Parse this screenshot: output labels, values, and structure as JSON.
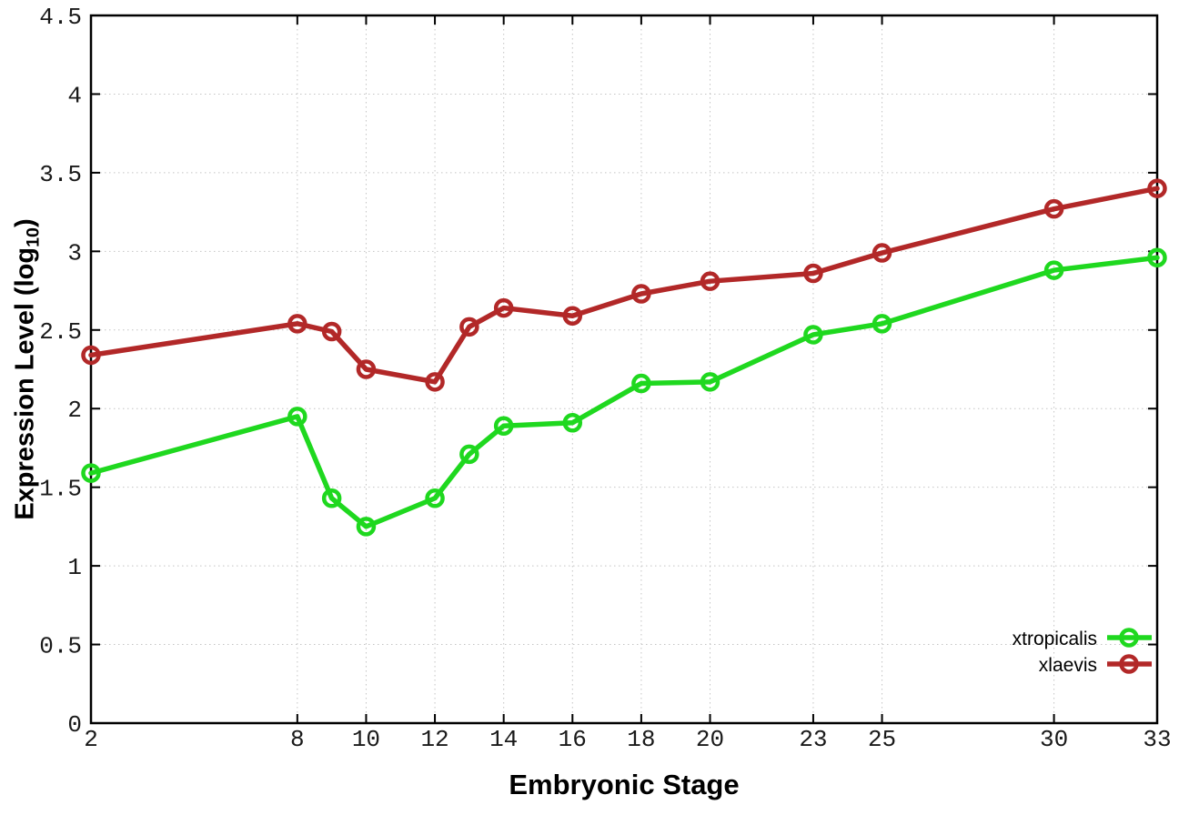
{
  "page": {
    "background": "#ffffff"
  },
  "chart_data": {
    "type": "line",
    "title": "",
    "xlabel": "Embryonic Stage",
    "ylabel": {
      "prefix": "Expression Level (log",
      "sub": "10",
      "suffix": ")"
    },
    "xlim": [
      2,
      33
    ],
    "ylim": [
      0,
      4.5
    ],
    "x": [
      2,
      8,
      9,
      10,
      12,
      13,
      14,
      16,
      18,
      20,
      23,
      25,
      30,
      33
    ],
    "xticks": [
      2,
      8,
      10,
      12,
      14,
      16,
      18,
      20,
      23,
      25,
      30,
      33
    ],
    "yticks": [
      0,
      0.5,
      1,
      1.5,
      2,
      2.5,
      3,
      3.5,
      4,
      4.5
    ],
    "grid": true,
    "grid_color": "#c4c4c4",
    "axis_color": "#000000",
    "legend": {
      "position": "inside-bottom-right",
      "entries": [
        "xtropicalis",
        "xlaevis"
      ]
    },
    "series": [
      {
        "name": "xtropicalis",
        "color": "#1fd81f",
        "marker": "open-circle",
        "values": [
          1.59,
          1.95,
          1.43,
          1.25,
          1.43,
          1.71,
          1.89,
          1.91,
          2.16,
          2.17,
          2.47,
          2.54,
          2.88,
          2.96
        ]
      },
      {
        "name": "xlaevis",
        "color": "#b22828",
        "marker": "open-circle",
        "values": [
          2.34,
          2.54,
          2.49,
          2.25,
          2.17,
          2.52,
          2.64,
          2.59,
          2.73,
          2.81,
          2.86,
          2.99,
          3.27,
          3.4
        ]
      }
    ]
  }
}
